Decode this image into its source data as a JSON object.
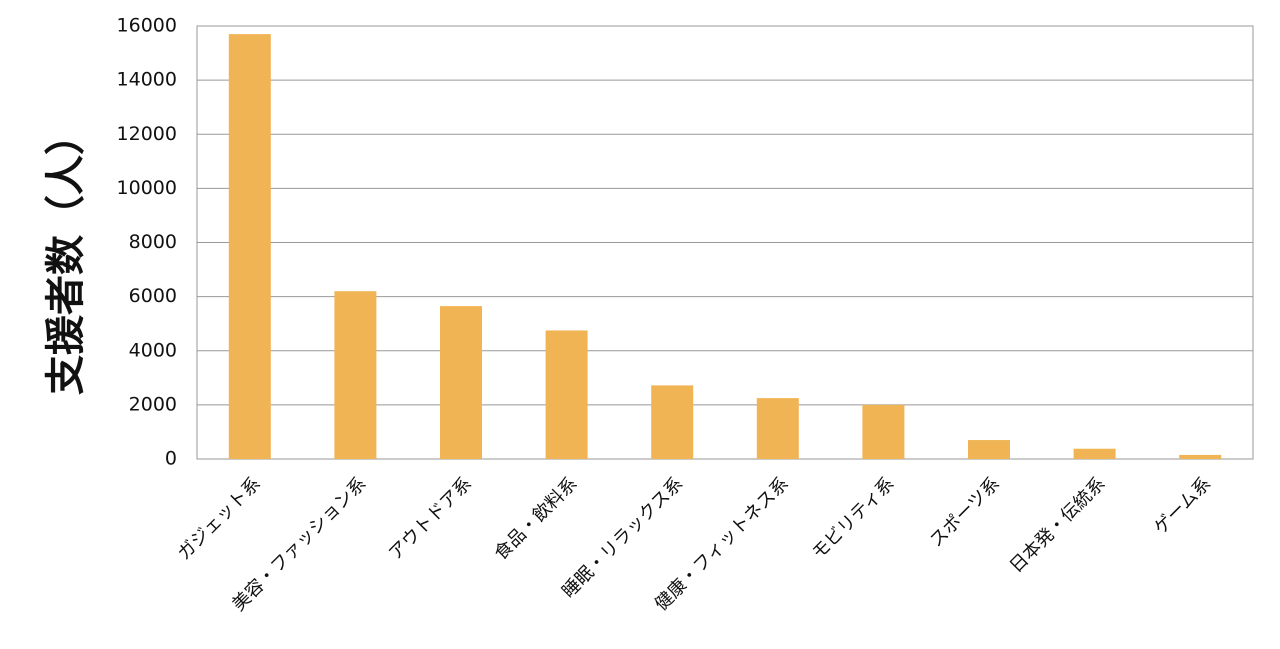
{
  "chart_data": {
    "type": "bar",
    "y_label": "支援者数（人）",
    "categories": [
      "ガジェット系",
      "美容・ファッション系",
      "アウトドア系",
      "食品・飲料系",
      "睡眠・リラックス系",
      "健康・フィットネス系",
      "モビリティ系",
      "スポーツ系",
      "日本発・伝統系",
      "ゲーム系"
    ],
    "values": [
      15700,
      6200,
      5650,
      4750,
      2720,
      2250,
      2000,
      700,
      380,
      150
    ],
    "color": "#f0b454",
    "ylim": [
      0,
      16000
    ],
    "yticks": [
      0,
      2000,
      4000,
      6000,
      8000,
      10000,
      12000,
      14000,
      16000
    ],
    "grid": true
  }
}
